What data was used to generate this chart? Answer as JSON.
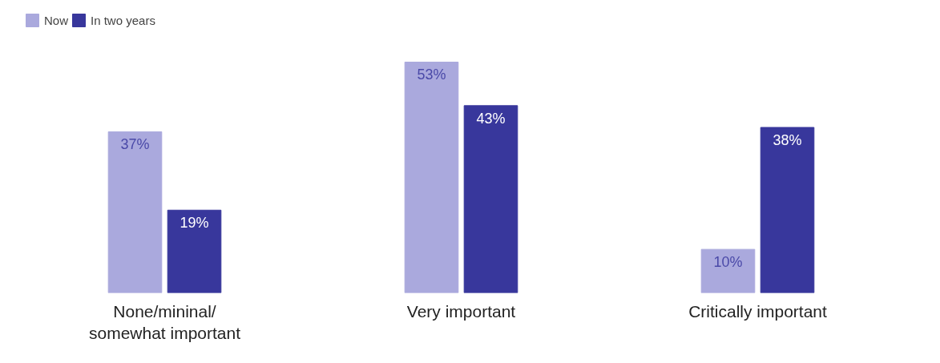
{
  "chart_data": {
    "type": "bar",
    "categories": [
      "None/mininal/\nsomewhat important",
      "Very important",
      "Critically important"
    ],
    "series": [
      {
        "name": "Now",
        "color": "#aaa9dd",
        "values": [
          37,
          53,
          10
        ],
        "value_labels": [
          "37%",
          "53%",
          "10%"
        ]
      },
      {
        "name": "In two years",
        "color": "#38379c",
        "values": [
          19,
          43,
          38
        ],
        "value_labels": [
          "19%",
          "43%",
          "38%"
        ]
      }
    ],
    "legend": "top left"
  }
}
